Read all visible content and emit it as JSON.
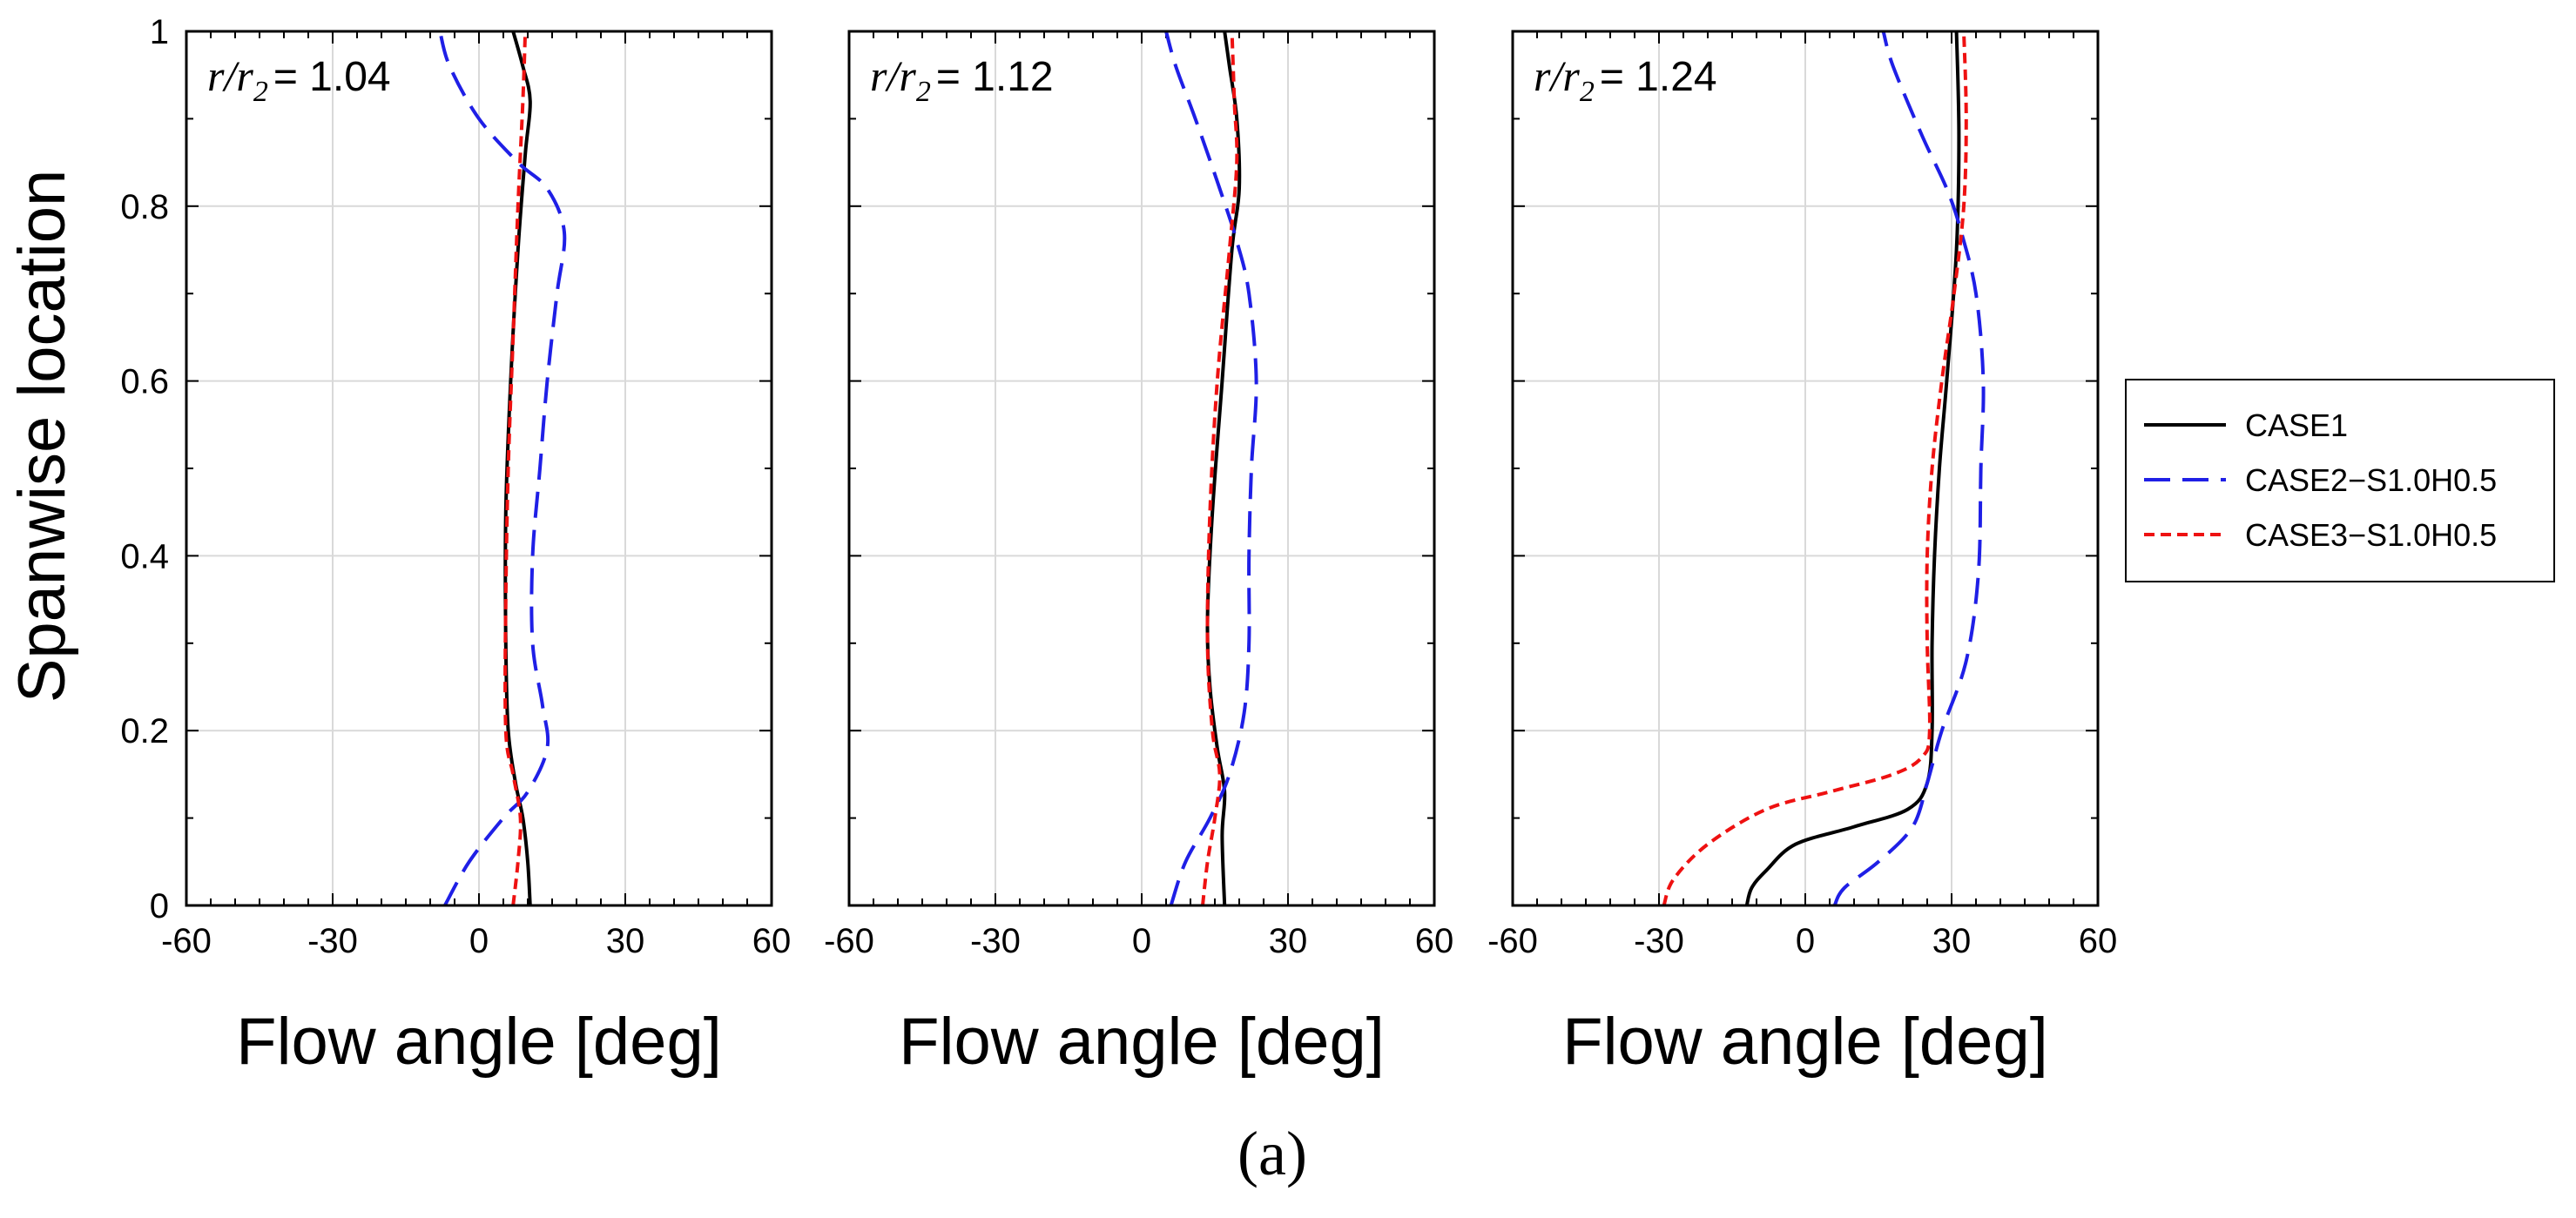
{
  "figure": {
    "caption": "(a)",
    "colors": {
      "case1": "#000000",
      "case2": "#1f1fe6",
      "case3": "#ee1111",
      "grid": "#d9d9d9"
    }
  },
  "chart_data": [
    {
      "type": "line",
      "annotation": {
        "var": "r/r",
        "sub": "2",
        "value": "= 1.04"
      },
      "xlabel": "Flow angle [deg]",
      "ylabel": "Spanwise location",
      "xlim": [
        -60,
        60
      ],
      "ylim": [
        0,
        1
      ],
      "xticks": [
        "-60",
        "-30",
        "0",
        "30",
        "60"
      ],
      "yticks": [
        "0",
        "0.2",
        "0.4",
        "0.6",
        "0.8",
        "1"
      ],
      "grid": true,
      "series": [
        {
          "name": "CASE1",
          "style": "solid",
          "points": [
            [
              10.5,
              0
            ],
            [
              10,
              0.05
            ],
            [
              9,
              0.1
            ],
            [
              7.5,
              0.14
            ],
            [
              6,
              0.2
            ],
            [
              5.5,
              0.3
            ],
            [
              5.5,
              0.45
            ],
            [
              6.5,
              0.6
            ],
            [
              8,
              0.75
            ],
            [
              9.5,
              0.86
            ],
            [
              10.5,
              0.92
            ],
            [
              9,
              0.96
            ],
            [
              7,
              1
            ]
          ]
        },
        {
          "name": "CASE2−S1.0H0.5",
          "style": "dashed",
          "points": [
            [
              -7,
              0
            ],
            [
              -2,
              0.05
            ],
            [
              5,
              0.1
            ],
            [
              10,
              0.13
            ],
            [
              14,
              0.18
            ],
            [
              13,
              0.23
            ],
            [
              11,
              0.3
            ],
            [
              11,
              0.4
            ],
            [
              12.5,
              0.5
            ],
            [
              14,
              0.6
            ],
            [
              16,
              0.7
            ],
            [
              17.5,
              0.77
            ],
            [
              14,
              0.82
            ],
            [
              8,
              0.85
            ],
            [
              0,
              0.9
            ],
            [
              -6,
              0.96
            ],
            [
              -8,
              1
            ]
          ]
        },
        {
          "name": "CASE3−S1.0H0.5",
          "style": "dotted",
          "points": [
            [
              7,
              0
            ],
            [
              8,
              0.05
            ],
            [
              8.5,
              0.1
            ],
            [
              7,
              0.15
            ],
            [
              5.5,
              0.2
            ],
            [
              5.5,
              0.35
            ],
            [
              6,
              0.5
            ],
            [
              7,
              0.65
            ],
            [
              8,
              0.8
            ],
            [
              9,
              0.92
            ],
            [
              9.5,
              1
            ]
          ]
        }
      ]
    },
    {
      "type": "line",
      "annotation": {
        "var": "r/r",
        "sub": "2",
        "value": "= 1.12"
      },
      "xlabel": "Flow angle [deg]",
      "ylabel": "",
      "xlim": [
        -60,
        60
      ],
      "ylim": [
        0,
        1
      ],
      "xticks": [
        "-60",
        "-30",
        "0",
        "30",
        "60"
      ],
      "yticks": [],
      "grid": true,
      "series": [
        {
          "name": "CASE1",
          "style": "solid",
          "points": [
            [
              17,
              0
            ],
            [
              16.5,
              0.08
            ],
            [
              17,
              0.13
            ],
            [
              15.5,
              0.18
            ],
            [
              14,
              0.25
            ],
            [
              13.5,
              0.33
            ],
            [
              14.5,
              0.45
            ],
            [
              16.5,
              0.6
            ],
            [
              18.5,
              0.75
            ],
            [
              20,
              0.82
            ],
            [
              19.5,
              0.9
            ],
            [
              18,
              0.96
            ],
            [
              17,
              1
            ]
          ]
        },
        {
          "name": "CASE2−S1.0H0.5",
          "style": "dashed",
          "points": [
            [
              6,
              0
            ],
            [
              9,
              0.05
            ],
            [
              14,
              0.1
            ],
            [
              18,
              0.15
            ],
            [
              21,
              0.22
            ],
            [
              22,
              0.3
            ],
            [
              22,
              0.4
            ],
            [
              22.5,
              0.5
            ],
            [
              23.5,
              0.6
            ],
            [
              22,
              0.7
            ],
            [
              19.5,
              0.76
            ],
            [
              16,
              0.82
            ],
            [
              11,
              0.9
            ],
            [
              7,
              0.96
            ],
            [
              5,
              1
            ]
          ]
        },
        {
          "name": "CASE3−S1.0H0.5",
          "style": "dotted",
          "points": [
            [
              12.5,
              0
            ],
            [
              13.5,
              0.05
            ],
            [
              15,
              0.1
            ],
            [
              16,
              0.15
            ],
            [
              14.5,
              0.2
            ],
            [
              13.5,
              0.3
            ],
            [
              14,
              0.45
            ],
            [
              15.5,
              0.6
            ],
            [
              18,
              0.75
            ],
            [
              19.5,
              0.85
            ],
            [
              19,
              0.92
            ],
            [
              18.5,
              1
            ]
          ]
        }
      ]
    },
    {
      "type": "line",
      "annotation": {
        "var": "r/r",
        "sub": "2",
        "value": "= 1.24"
      },
      "xlabel": "Flow angle [deg]",
      "ylabel": "",
      "xlim": [
        -60,
        60
      ],
      "ylim": [
        0,
        1
      ],
      "xticks": [
        "-60",
        "-30",
        "0",
        "30",
        "60"
      ],
      "yticks": [],
      "grid": true,
      "series": [
        {
          "name": "CASE1",
          "style": "solid",
          "points": [
            [
              -12,
              0
            ],
            [
              -11,
              0.02
            ],
            [
              -8,
              0.04
            ],
            [
              -2,
              0.07
            ],
            [
              10,
              0.09
            ],
            [
              21,
              0.11
            ],
            [
              25,
              0.14
            ],
            [
              26,
              0.2
            ],
            [
              26,
              0.3
            ],
            [
              26.5,
              0.4
            ],
            [
              27.5,
              0.5
            ],
            [
              29,
              0.6
            ],
            [
              31,
              0.75
            ],
            [
              31.5,
              0.88
            ],
            [
              31,
              1
            ]
          ]
        },
        {
          "name": "CASE2−S1.0H0.5",
          "style": "dashed",
          "points": [
            [
              6,
              0
            ],
            [
              8,
              0.02
            ],
            [
              15,
              0.05
            ],
            [
              22,
              0.09
            ],
            [
              25,
              0.14
            ],
            [
              28,
              0.2
            ],
            [
              33,
              0.28
            ],
            [
              35.5,
              0.38
            ],
            [
              36,
              0.5
            ],
            [
              36.5,
              0.6
            ],
            [
              35,
              0.7
            ],
            [
              32,
              0.77
            ],
            [
              29,
              0.82
            ],
            [
              24,
              0.88
            ],
            [
              18,
              0.96
            ],
            [
              16,
              1
            ]
          ]
        },
        {
          "name": "CASE3−S1.0H0.5",
          "style": "dotted",
          "points": [
            [
              -29,
              0
            ],
            [
              -27,
              0.03
            ],
            [
              -20,
              0.07
            ],
            [
              -8,
              0.11
            ],
            [
              5,
              0.13
            ],
            [
              18,
              0.15
            ],
            [
              24,
              0.17
            ],
            [
              25.5,
              0.2
            ],
            [
              25,
              0.3
            ],
            [
              25,
              0.4
            ],
            [
              26,
              0.5
            ],
            [
              28,
              0.6
            ],
            [
              30.5,
              0.7
            ],
            [
              32.5,
              0.8
            ],
            [
              33,
              0.9
            ],
            [
              32.5,
              1
            ]
          ]
        }
      ]
    }
  ],
  "legend": {
    "entries": [
      {
        "label": "CASE1",
        "style": "solid"
      },
      {
        "label": "CASE2−S1.0H0.5",
        "style": "dashed"
      },
      {
        "label": "CASE3−S1.0H0.5",
        "style": "dotted"
      }
    ]
  }
}
